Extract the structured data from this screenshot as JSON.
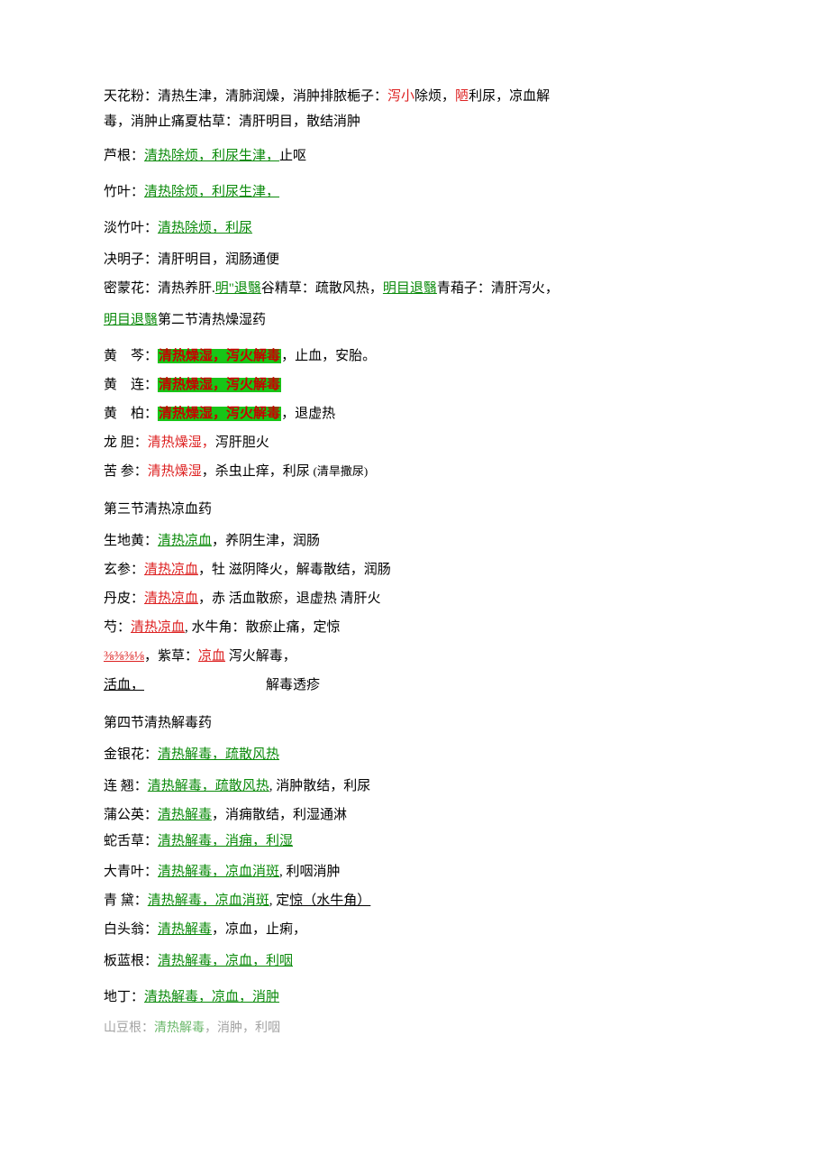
{
  "colors": {
    "text": "#000000",
    "red": "#dd2222",
    "green": "#0a8a0a",
    "highlight_bg": "#17c517",
    "highlight_text": "#c90000",
    "background": "#ffffff",
    "faint": "#666666"
  },
  "fonts": {
    "family": "SimSun, 宋体, serif",
    "size_pt": 11,
    "line_height": 2.0
  },
  "intro": {
    "line1_a": "天花粉：清热生津，清肺润燥，消肿排脓梔子：",
    "line1_b": "泻小",
    "line1_c": "除烦，",
    "line1_d": "陋",
    "line1_e": "利尿，凉血解",
    "line2": "毒，消肿止痛夏枯草：清肝明目，散结消肿"
  },
  "lugen": {
    "name": "芦根：",
    "ul": "清热除烦，利尿生津，",
    "tail": "止呕"
  },
  "zhuye": {
    "name": "竹叶：",
    "ul": "清热除烦，利尿生津，"
  },
  "danzhuye": {
    "name": "淡竹叶：",
    "ul": "清热除烦，利尿"
  },
  "juemingzi": {
    "text": "决明子：清肝明目，润肠通便"
  },
  "mimenghua": {
    "a": "密蒙花：清热养肝.",
    "b": "明\"退翳",
    "c": "谷精草：疏散风热，",
    "d": "明目退翳",
    "e": "青葙子：清肝泻火，"
  },
  "mingmu": {
    "a": "明目退翳",
    "b": "第二节清热燥湿药"
  },
  "huangqin": {
    "name_a": "黄",
    "name_b": "芩：",
    "hl": "清热燥湿，泻火解毒",
    "tail": "，止血，安胎。"
  },
  "huanglian": {
    "name_a": "黄",
    "name_b": "连：",
    "hl": "清热燥湿，泻火解毒"
  },
  "huangbai": {
    "name_a": "黄",
    "name_b": "柏：",
    "hl": "清热燥湿，泻火解毒",
    "tail": "，退虚热"
  },
  "longdan": {
    "name": "龙 胆：",
    "red": "清热燥湿，",
    "tail": "泻肝胆火"
  },
  "kushen": {
    "name": "苦 参：",
    "red": "清热燥湿",
    "tail": "，杀虫止痒，利尿 ",
    "paren": "(清旱撒尿)"
  },
  "sec3": {
    "title": "第三节清热凉血药"
  },
  "shengdihuang": {
    "name": "生地黄：",
    "ul": "清热凉血",
    "tail": "，养阴生津，润肠"
  },
  "xuanshen": {
    "name": "玄参：",
    "ul": "清热凉血",
    "tail": "，牡 滋阴降火，解毒散结，润肠"
  },
  "danpi": {
    "name": "丹皮：",
    "ul": "清热凉血",
    "tail": "，赤 活血散瘀，退虚热 清肝火"
  },
  "shao": {
    "name": "芍：",
    "ul": "清热凉血",
    "tail": ", 水牛角：散瘀止痛，定惊"
  },
  "frac": {
    "a": "⅜⅜⅜⅛",
    "b": "，紫草：",
    "c": "凉血",
    "d": " 泻火解毒，"
  },
  "huoxue": {
    "a": "活血，",
    "b": "解毒透疹"
  },
  "sec4": {
    "title": "第四节清热解毒药"
  },
  "jinyinhua": {
    "name": "金银花：",
    "ul": "清热解毒，疏散风热"
  },
  "lianqiao": {
    "name": "连 翘：",
    "ul": "清热解毒，疏散风热",
    "tail": ", 消肿散结，利尿"
  },
  "pugongying": {
    "name": "蒲公英：",
    "ul": "清热解毒",
    "tail": "，消痈散结，利湿通淋"
  },
  "sheshecao": {
    "name": "蛇舌草：",
    "ul": "清热解毒，消痈，利湿"
  },
  "daqingye": {
    "name": "大青叶：",
    "ul": "清热解毒，凉血消斑",
    "tail": ", 利咽消肿"
  },
  "qingdai": {
    "name": "青 黛：",
    "ul": "清热解毒，凉血消斑",
    "tail": ", 定",
    "ul2": "惊（水牛角）"
  },
  "baitouweng": {
    "name": "白头翁：",
    "ul": "清热解毒",
    "tail": "，凉血，止痢，"
  },
  "banlangen": {
    "name": "板蓝根：",
    "ul": "清热解毒，凉血，利咽"
  },
  "diding": {
    "name": "地丁：",
    "ul": "清热解毒，凉血，消肿"
  },
  "last": {
    "a": "山豆根：",
    "b": "清热解毒",
    "c": "，消肿，利咽"
  }
}
